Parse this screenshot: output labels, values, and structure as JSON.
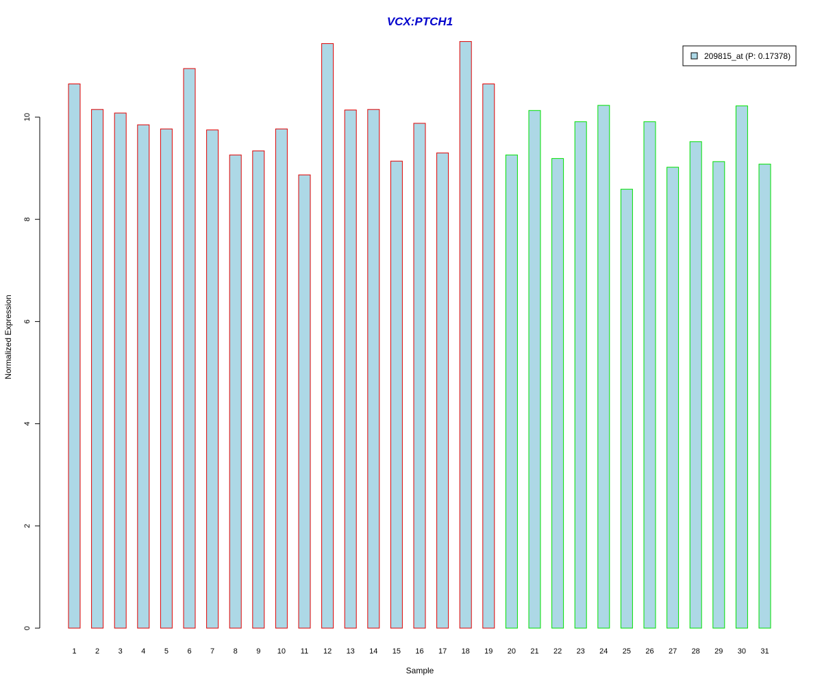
{
  "chart_data": {
    "type": "bar",
    "title": "VCX:PTCH1",
    "xlabel": "Sample",
    "ylabel": "Normalized Expression",
    "ylim": [
      0,
      11.5
    ],
    "yticks": [
      0,
      2,
      4,
      6,
      8,
      10
    ],
    "grid": false,
    "legend_position": "top-right",
    "categories": [
      "1",
      "2",
      "3",
      "4",
      "5",
      "6",
      "7",
      "8",
      "9",
      "10",
      "11",
      "12",
      "13",
      "14",
      "15",
      "16",
      "17",
      "18",
      "19",
      "20",
      "21",
      "22",
      "23",
      "24",
      "25",
      "26",
      "27",
      "28",
      "29",
      "30",
      "31"
    ],
    "series": [
      {
        "name": "209815_at (P: 0.17378)",
        "values": [
          10.65,
          10.15,
          10.08,
          9.85,
          9.77,
          10.95,
          9.75,
          9.26,
          9.34,
          9.77,
          8.87,
          11.44,
          10.14,
          10.15,
          9.14,
          9.88,
          9.3,
          11.48,
          10.65,
          9.26,
          10.13,
          9.19,
          9.91,
          10.23,
          8.59,
          9.91,
          9.02,
          9.52,
          9.13,
          10.22,
          9.08
        ]
      }
    ],
    "bar_groups": [
      {
        "from": 1,
        "to": 19,
        "border_color": "#e00000"
      },
      {
        "from": 20,
        "to": 31,
        "border_color": "#00e000"
      }
    ],
    "colors": {
      "bar_fill": "#add8e6",
      "title": "#0000cc",
      "axis": "#000000"
    }
  }
}
